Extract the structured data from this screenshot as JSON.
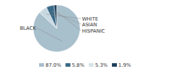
{
  "chart_data": {
    "type": "pie",
    "categories": [
      "BLACK",
      "WHITE",
      "ASIAN",
      "HISPANIC"
    ],
    "values": [
      87.0,
      5.8,
      5.3,
      1.9
    ],
    "colors": [
      "#a8bfcc",
      "#c8d8e0",
      "#3a6a87",
      "#1e3f5a"
    ],
    "legend": "bottom",
    "legend_entries": [
      {
        "value": 87.0,
        "label": "87.0%",
        "color": "#a8bfcc"
      },
      {
        "value": 5.8,
        "label": "5.8%",
        "color": "#3a6a87"
      },
      {
        "value": 5.3,
        "label": "5.3%",
        "color": "#d6e4ea"
      },
      {
        "value": 1.9,
        "label": "1.9%",
        "color": "#1e3f5a"
      }
    ]
  }
}
